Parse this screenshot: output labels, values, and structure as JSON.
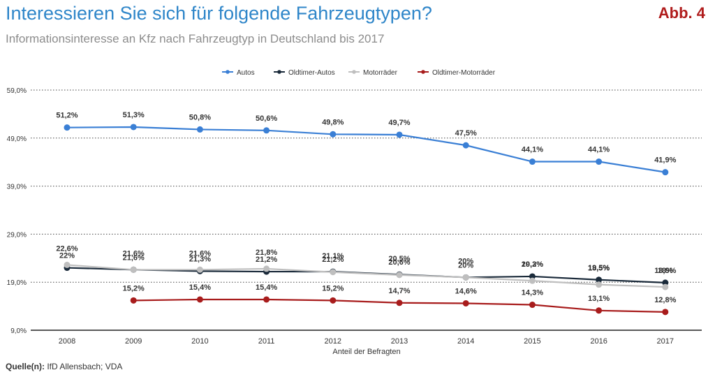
{
  "header": {
    "title": "Interessieren Sie sich für folgende Fahrzeugtypen?",
    "subtitle": "Informationsinteresse an Kfz nach Fahrzeugtyp in Deutschland bis 2017",
    "badge": "Abb. 4"
  },
  "footer": {
    "source_label": "Quelle(n):",
    "source_text": "IfD Allensbach; VDA"
  },
  "chart_data": {
    "type": "line",
    "xlabel": "Anteil der Befragten",
    "ylabel": "",
    "categories": [
      "2008",
      "2009",
      "2010",
      "2011",
      "2012",
      "2013",
      "2014",
      "2015",
      "2016",
      "2017"
    ],
    "ylim": [
      9,
      59
    ],
    "yticks": [
      9,
      19,
      29,
      39,
      49,
      59
    ],
    "ytick_labels": [
      "9,0%",
      "19,0%",
      "29,0%",
      "39,0%",
      "49,0%",
      "59,0%"
    ],
    "grid": "horizontal-dotted",
    "legend_position": "top",
    "series": [
      {
        "name": "Autos",
        "color": "#3a7fd5",
        "values": [
          51.2,
          51.3,
          50.8,
          50.6,
          49.8,
          49.7,
          47.5,
          44.1,
          44.1,
          41.9
        ],
        "labels": [
          "51,2%",
          "51,3%",
          "50,8%",
          "50,6%",
          "49,8%",
          "49,7%",
          "47,5%",
          "44,1%",
          "44,1%",
          "41,9%"
        ]
      },
      {
        "name": "Oldtimer-Autos",
        "color": "#1a2a3a",
        "values": [
          22,
          21.6,
          21.3,
          21.2,
          21.2,
          20.6,
          20,
          20.2,
          19.5,
          18.9
        ],
        "labels": [
          "22%",
          "21,6%",
          "21,3%",
          "21,2%",
          "21,2%",
          "20,6%",
          "20%",
          "20,2%",
          "19,5%",
          "18,9%"
        ]
      },
      {
        "name": "Motorräder",
        "color": "#bfbfbf",
        "values": [
          22.6,
          21.6,
          21.6,
          21.8,
          21.1,
          20.5,
          20,
          19.3,
          18.5,
          18
        ],
        "labels": [
          "22,6%",
          "21,6%",
          "21,6%",
          "21,8%",
          "21,1%",
          "20,5%",
          "20%",
          "19,3%",
          "18,5%",
          "18%"
        ]
      },
      {
        "name": "Oldtimer-Motorräder",
        "color": "#a81c1c",
        "values": [
          null,
          15.2,
          15.4,
          15.4,
          15.2,
          14.7,
          14.6,
          14.3,
          13.1,
          12.8
        ],
        "labels": [
          null,
          "15,2%",
          "15,4%",
          "15,4%",
          "15,2%",
          "14,7%",
          "14,6%",
          "14,3%",
          "13,1%",
          "12,8%"
        ]
      }
    ]
  }
}
